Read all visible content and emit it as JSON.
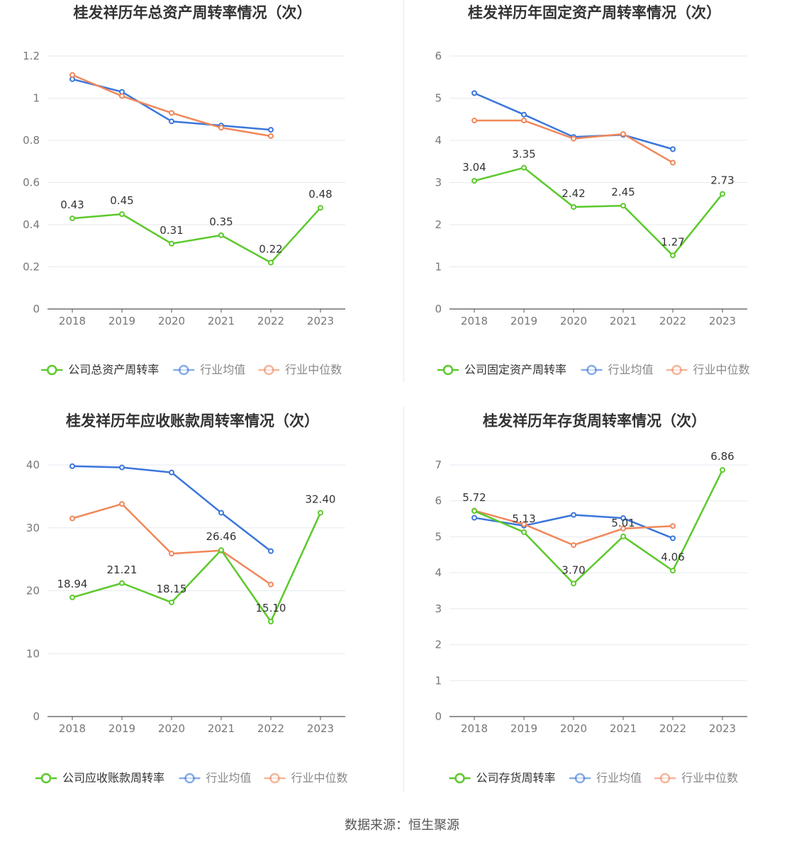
{
  "source_label": "数据来源：恒生聚源",
  "colors": {
    "company": "#5cc92c",
    "average": "#3a76db",
    "median": "#f0875a",
    "grid": "#e6e9f0",
    "axis": "#555555",
    "tick_text": "#777777",
    "title": "#333333"
  },
  "chart_data": [
    {
      "type": "line",
      "title": "桂发祥历年总资产周转率情况（次）",
      "categories": [
        "2018",
        "2019",
        "2020",
        "2021",
        "2022",
        "2023"
      ],
      "ylim": [
        0,
        1.2
      ],
      "yticks": [
        0,
        0.2,
        0.4,
        0.6,
        0.8,
        1,
        1.2
      ],
      "ytick_labels": [
        "0",
        "0.2",
        "0.4",
        "0.6",
        "0.8",
        "1",
        "1.2"
      ],
      "series": [
        {
          "name": "公司总资产周转率",
          "key": "company",
          "values": [
            0.43,
            0.45,
            0.31,
            0.35,
            0.22,
            0.48
          ],
          "labels": [
            "0.43",
            "0.45",
            "0.31",
            "0.35",
            "0.22",
            "0.48"
          ]
        },
        {
          "name": "行业均值",
          "key": "average",
          "values": [
            1.09,
            1.03,
            0.89,
            0.87,
            0.85,
            null
          ]
        },
        {
          "name": "行业中位数",
          "key": "median",
          "values": [
            1.11,
            1.01,
            0.93,
            0.86,
            0.82,
            null
          ]
        }
      ]
    },
    {
      "type": "line",
      "title": "桂发祥历年固定资产周转率情况（次）",
      "categories": [
        "2018",
        "2019",
        "2020",
        "2021",
        "2022",
        "2023"
      ],
      "ylim": [
        0,
        6
      ],
      "yticks": [
        0,
        1,
        2,
        3,
        4,
        5,
        6
      ],
      "ytick_labels": [
        "0",
        "1",
        "2",
        "3",
        "4",
        "5",
        "6"
      ],
      "series": [
        {
          "name": "公司固定资产周转率",
          "key": "company",
          "values": [
            3.04,
            3.35,
            2.42,
            2.45,
            1.27,
            2.73
          ],
          "labels": [
            "3.04",
            "3.35",
            "2.42",
            "2.45",
            "1.27",
            "2.73"
          ]
        },
        {
          "name": "行业均值",
          "key": "average",
          "values": [
            5.12,
            4.61,
            4.08,
            4.13,
            3.79,
            null
          ]
        },
        {
          "name": "行业中位数",
          "key": "median",
          "values": [
            4.47,
            4.47,
            4.04,
            4.15,
            3.47,
            null
          ]
        }
      ]
    },
    {
      "type": "line",
      "title": "桂发祥历年应收账款周转率情况（次）",
      "categories": [
        "2018",
        "2019",
        "2020",
        "2021",
        "2022",
        "2023"
      ],
      "ylim": [
        0,
        40
      ],
      "yticks": [
        0,
        10,
        20,
        30,
        40
      ],
      "ytick_labels": [
        "0",
        "10",
        "20",
        "30",
        "40"
      ],
      "series": [
        {
          "name": "公司应收账款周转率",
          "key": "company",
          "values": [
            18.94,
            21.21,
            18.15,
            26.46,
            15.1,
            32.4
          ],
          "labels": [
            "18.94",
            "21.21",
            "18.15",
            "26.46",
            "15.10",
            "32.40"
          ]
        },
        {
          "name": "行业均值",
          "key": "average",
          "values": [
            39.8,
            39.6,
            38.8,
            32.4,
            26.3,
            null
          ]
        },
        {
          "name": "行业中位数",
          "key": "median",
          "values": [
            31.5,
            33.8,
            25.9,
            26.4,
            21.0,
            null
          ]
        }
      ]
    },
    {
      "type": "line",
      "title": "桂发祥历年存货周转率情况（次）",
      "categories": [
        "2018",
        "2019",
        "2020",
        "2021",
        "2022",
        "2023"
      ],
      "ylim": [
        0,
        7
      ],
      "yticks": [
        0,
        1,
        2,
        3,
        4,
        5,
        6,
        7
      ],
      "ytick_labels": [
        "0",
        "1",
        "2",
        "3",
        "4",
        "5",
        "6",
        "7"
      ],
      "series": [
        {
          "name": "公司存货周转率",
          "key": "company",
          "values": [
            5.72,
            5.13,
            3.7,
            5.01,
            4.06,
            6.86
          ],
          "labels": [
            "5.72",
            "5.13",
            "3.70",
            "5.01",
            "4.06",
            "6.86"
          ]
        },
        {
          "name": "行业均值",
          "key": "average",
          "values": [
            5.53,
            5.31,
            5.61,
            5.52,
            4.96,
            null
          ]
        },
        {
          "name": "行业中位数",
          "key": "median",
          "values": [
            5.73,
            5.35,
            4.77,
            5.23,
            5.3,
            null
          ]
        }
      ]
    }
  ]
}
